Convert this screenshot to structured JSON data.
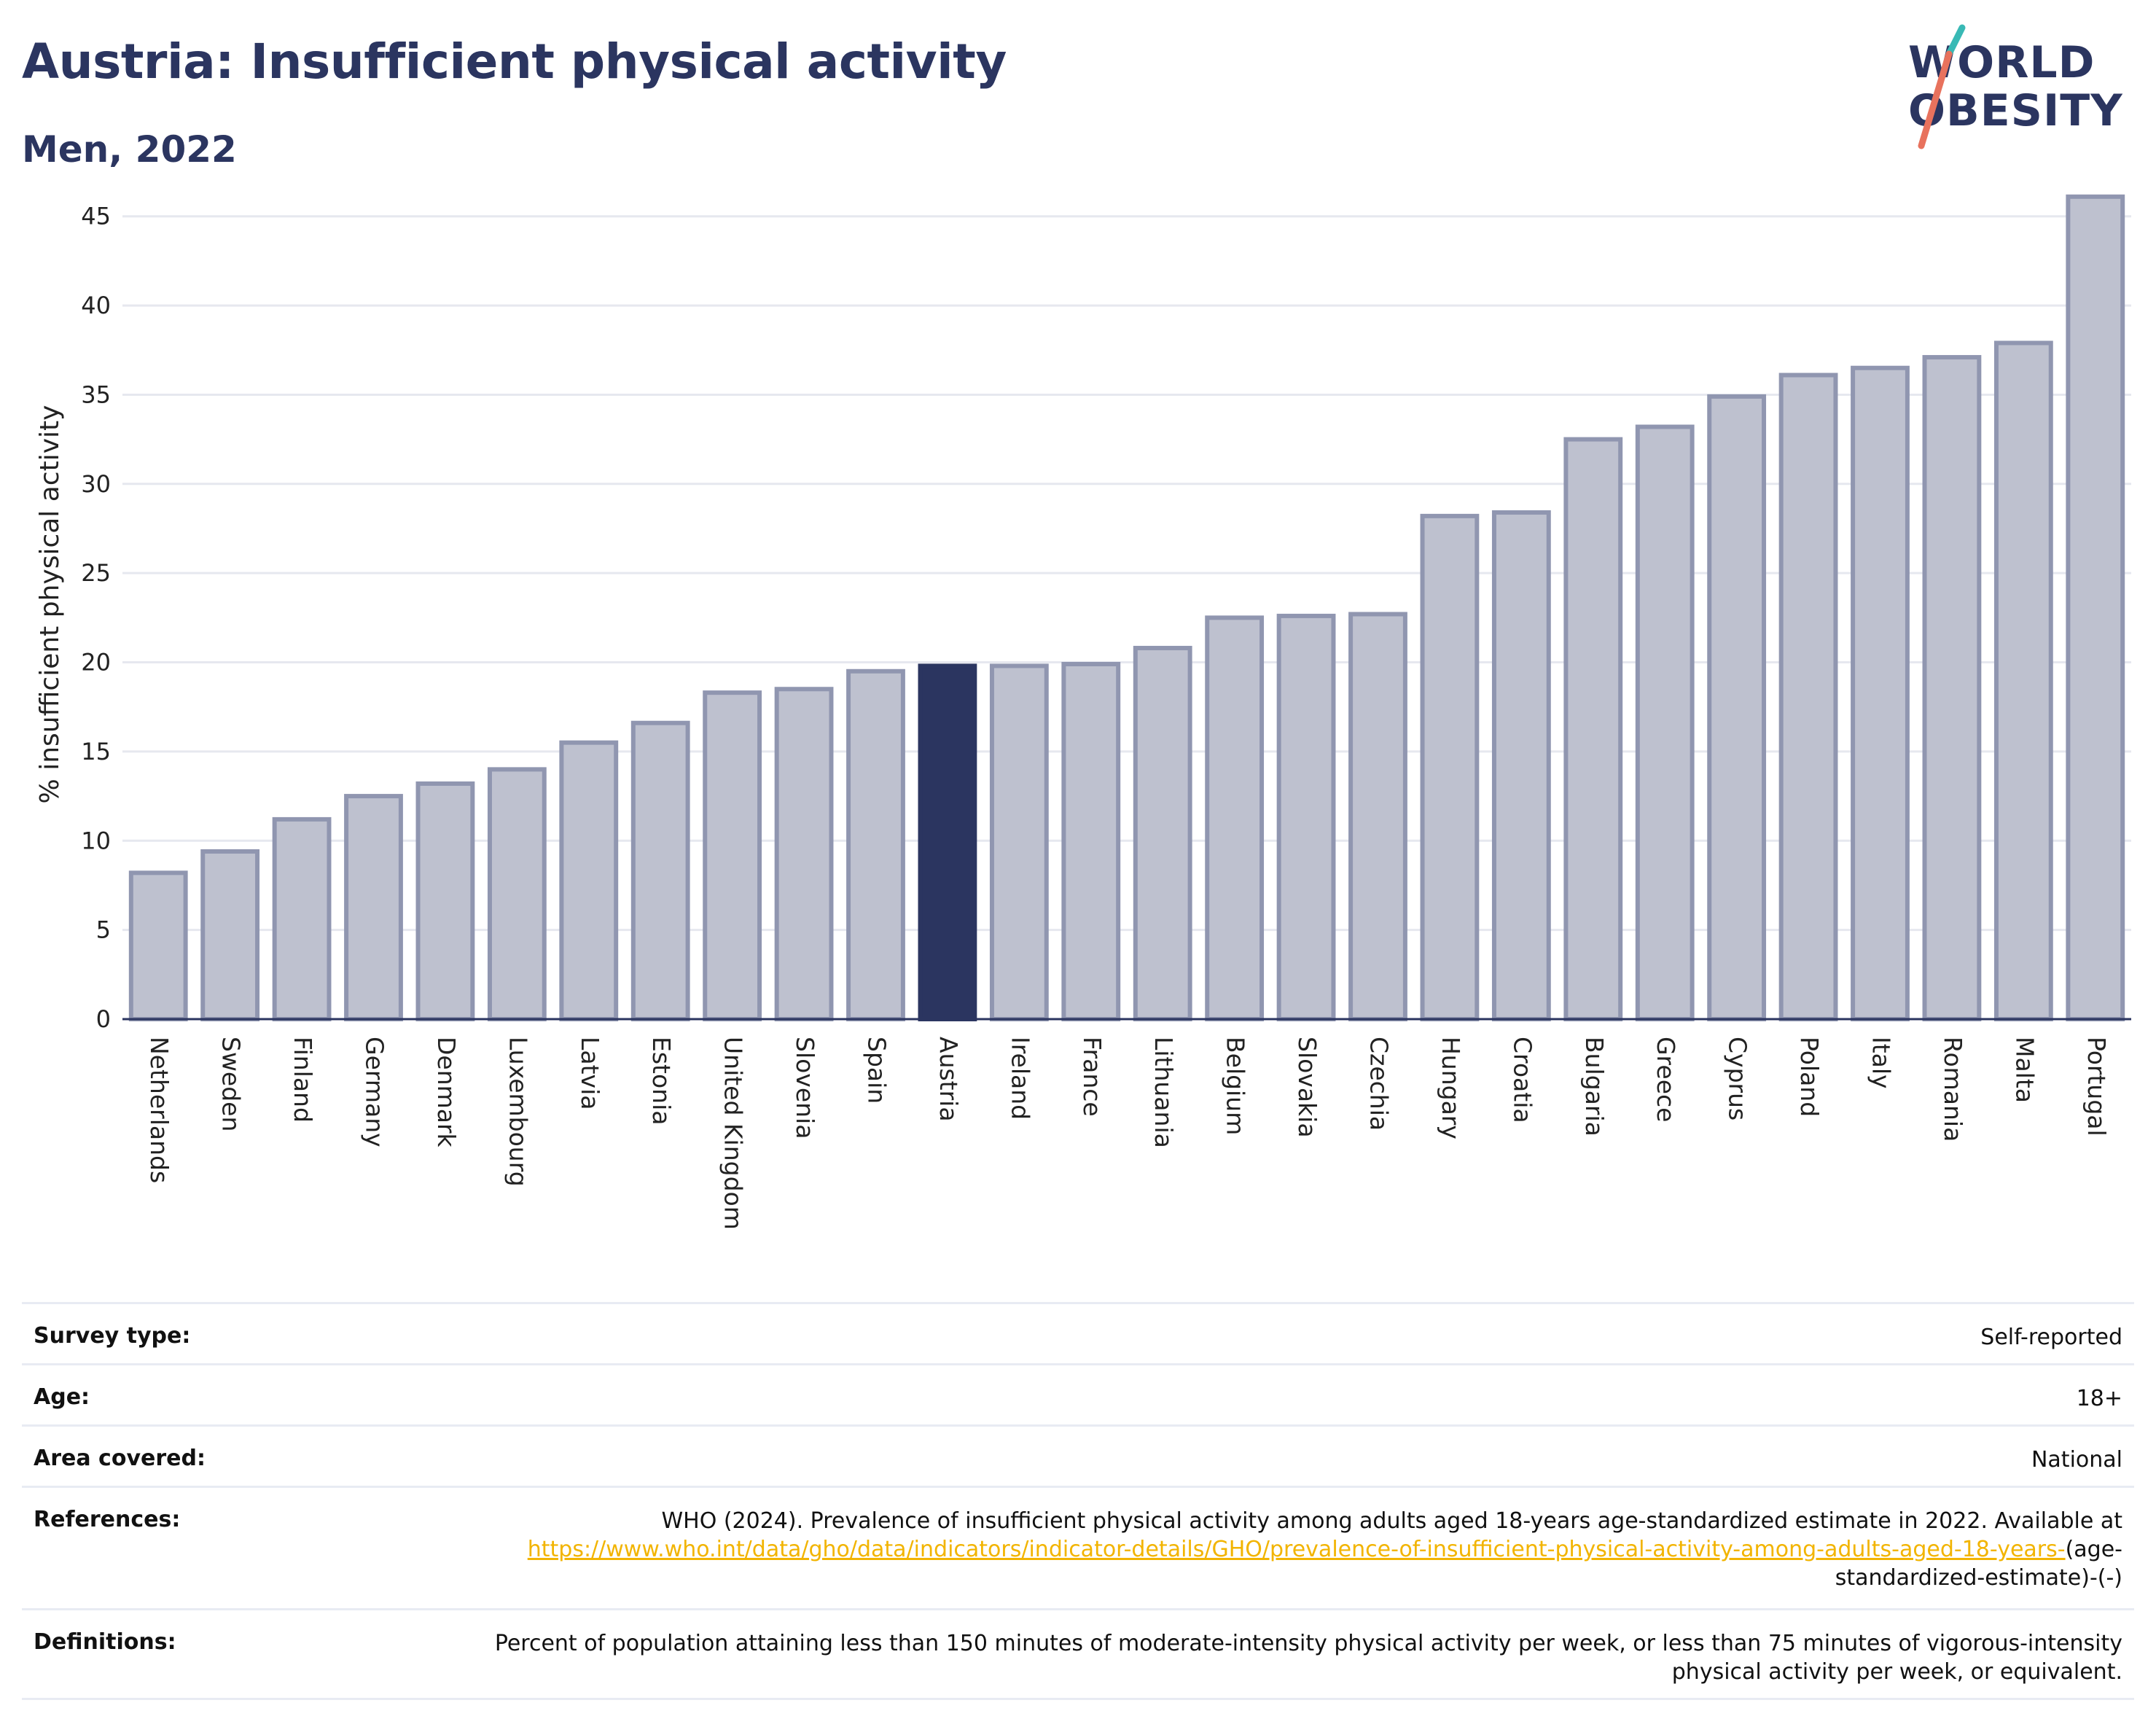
{
  "header": {
    "title": "Austria: Insufficient physical activity",
    "subtitle": "Men, 2022"
  },
  "logo": {
    "line1": "WORLD",
    "line2": "OBESITY"
  },
  "colors": {
    "navy": "#2b3560",
    "bar_default": "#bec1cf",
    "bar_border": "#9096b0",
    "bar_highlight": "#2b3560",
    "link": "#f2b400",
    "logo_slash_red": "#e8725d",
    "logo_slash_teal": "#38b9b5"
  },
  "chart_data": {
    "type": "bar",
    "ylabel": "% insufficient physical activity",
    "xlabel": "",
    "ylim": [
      0,
      46.5
    ],
    "yticks": [
      0,
      5,
      10,
      15,
      20,
      25,
      30,
      35,
      40,
      45
    ],
    "grid": true,
    "highlight": "Austria",
    "categories": [
      "Netherlands",
      "Sweden",
      "Finland",
      "Germany",
      "Denmark",
      "Luxembourg",
      "Latvia",
      "Estonia",
      "United Kingdom",
      "Slovenia",
      "Spain",
      "Austria",
      "Ireland",
      "France",
      "Lithuania",
      "Belgium",
      "Slovakia",
      "Czechia",
      "Hungary",
      "Croatia",
      "Bulgaria",
      "Greece",
      "Cyprus",
      "Poland",
      "Italy",
      "Romania",
      "Malta",
      "Portugal"
    ],
    "values": [
      8.2,
      9.4,
      11.2,
      12.5,
      13.2,
      14.0,
      15.5,
      16.6,
      18.3,
      18.5,
      19.5,
      19.8,
      19.8,
      19.9,
      20.8,
      22.5,
      22.6,
      22.7,
      28.2,
      28.4,
      32.5,
      33.2,
      34.9,
      36.1,
      36.5,
      37.1,
      37.9,
      46.1
    ]
  },
  "meta": {
    "survey_type": {
      "label": "Survey type:",
      "value": "Self-reported"
    },
    "age": {
      "label": "Age:",
      "value": "18+"
    },
    "area": {
      "label": "Area covered:",
      "value": "National"
    },
    "references": {
      "label": "References:",
      "text": "WHO (2024). Prevalence of insufficient physical activity among adults aged 18-years age-standardized estimate in 2022. Available at",
      "link": "https://www.who.int/data/gho/data/indicators/indicator-details/GHO/prevalence-of-insufficient-physical-activity-among-adults-aged-18-years-",
      "suffix": "(age-standardized-estimate)-(-)"
    },
    "definitions": {
      "label": "Definitions:",
      "value": "Percent of population attaining less than 150 minutes of moderate-intensity physical activity per week, or less than 75 minutes of vigorous-intensity physical activity per week, or equivalent."
    }
  }
}
